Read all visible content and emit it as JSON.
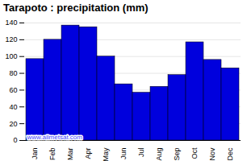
{
  "chart_data": {
    "type": "bar",
    "title": "Tarapoto : precipitation (mm)",
    "categories": [
      "Jan",
      "Feb",
      "Mar",
      "Apr",
      "May",
      "Jun",
      "Jul",
      "Aug",
      "Sep",
      "Oct",
      "Nov",
      "Dec"
    ],
    "values": [
      97,
      120,
      137,
      135,
      100,
      67,
      57,
      64,
      78,
      117,
      96,
      86
    ],
    "color": "#0000dd",
    "ylim": [
      0,
      140
    ],
    "yticks": [
      0,
      20,
      40,
      60,
      80,
      100,
      120,
      140
    ],
    "grid": true,
    "annotations": [
      "www.allmetsat.com"
    ]
  }
}
